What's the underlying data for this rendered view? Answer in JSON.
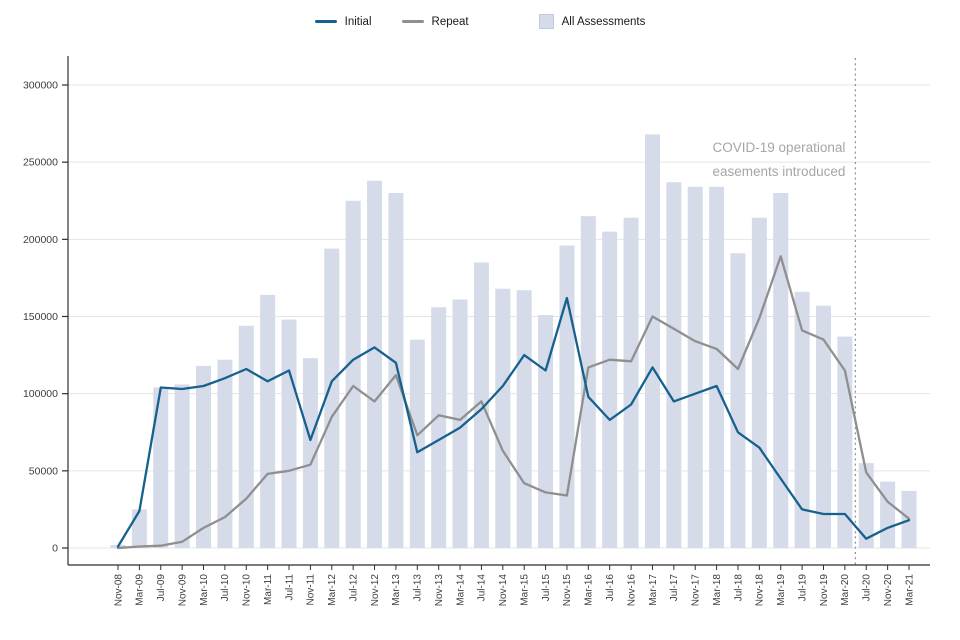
{
  "chart_data": {
    "type": "bar",
    "title": "",
    "xlabel": "",
    "ylabel": "",
    "ylim": [
      0,
      300000
    ],
    "yticks": [
      0,
      50000,
      100000,
      150000,
      200000,
      250000,
      300000
    ],
    "ytick_labels": [
      "0",
      "50000",
      "100000",
      "150000",
      "200000",
      "250000",
      "300000"
    ],
    "grid": "horizontal",
    "legend_position": "top-center",
    "categories": [
      "Nov-08",
      "Mar-09",
      "Jul-09",
      "Nov-09",
      "Mar-10",
      "Jul-10",
      "Nov-10",
      "Mar-11",
      "Jul-11",
      "Nov-11",
      "Mar-12",
      "Jul-12",
      "Nov-12",
      "Mar-13",
      "Jul-13",
      "Nov-13",
      "Mar-14",
      "Jul-14",
      "Nov-14",
      "Mar-15",
      "Jul-15",
      "Nov-15",
      "Mar-16",
      "Jul-16",
      "Nov-16",
      "Mar-17",
      "Jul-17",
      "Nov-17",
      "Mar-18",
      "Jul-18",
      "Nov-18",
      "Mar-19",
      "Jul-19",
      "Nov-19",
      "Mar-20",
      "Jul-20",
      "Nov-20",
      "Mar-21"
    ],
    "series": [
      {
        "name": "Initial",
        "type": "line",
        "color": "#16618e",
        "values": [
          1000,
          24000,
          104000,
          103000,
          105000,
          110000,
          116000,
          108000,
          115000,
          70000,
          108000,
          122000,
          130000,
          120000,
          62000,
          70000,
          78000,
          90000,
          105000,
          125000,
          115000,
          162000,
          98000,
          83000,
          93000,
          117000,
          95000,
          100000,
          105000,
          75000,
          65000,
          45000,
          25000,
          22000,
          22000,
          6000,
          13000,
          18000
        ]
      },
      {
        "name": "Repeat",
        "type": "line",
        "color": "#8f8f8f",
        "values": [
          0,
          1000,
          1500,
          4000,
          13000,
          20000,
          32000,
          48000,
          50000,
          54000,
          85000,
          105000,
          95000,
          112000,
          73000,
          86000,
          83000,
          95000,
          63000,
          42000,
          36000,
          34000,
          117000,
          122000,
          121000,
          150000,
          142000,
          134000,
          129000,
          116000,
          149000,
          189000,
          141000,
          135000,
          115000,
          49000,
          30000,
          19000
        ]
      },
      {
        "name": "All Assessments",
        "type": "bar",
        "color": "#d5dbe9",
        "values": [
          2000,
          25000,
          104000,
          106000,
          118000,
          122000,
          144000,
          164000,
          148000,
          123000,
          194000,
          225000,
          238000,
          230000,
          135000,
          156000,
          161000,
          185000,
          168000,
          167000,
          151000,
          196000,
          215000,
          205000,
          214000,
          268000,
          237000,
          234000,
          234000,
          191000,
          214000,
          230000,
          166000,
          157000,
          137000,
          55000,
          43000,
          37000
        ]
      }
    ],
    "annotation": {
      "lines": [
        "COVID-19 operational",
        "easements introduced"
      ],
      "color": "#a6a6a6"
    },
    "reference_line": {
      "at_category": "Mar-20",
      "style": "dotted",
      "color": "#8f8f8f"
    }
  }
}
